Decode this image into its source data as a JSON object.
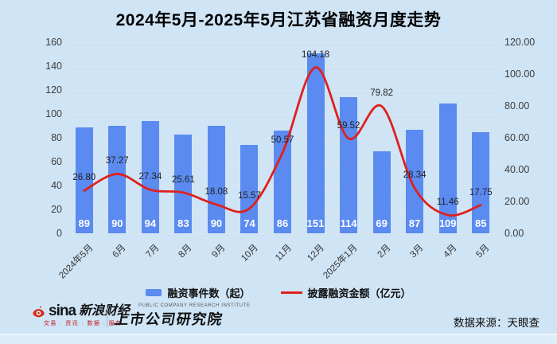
{
  "title": "2024年5月-2025年5月江苏省融资月度走势",
  "colors": {
    "background": "#cfe4f5",
    "bar": "#5b8bf0",
    "line": "#e0201c"
  },
  "chart_data": {
    "type": "bar",
    "subtype": "bar+line dual-axis",
    "categories": [
      "2024年5月",
      "6月",
      "7月",
      "8月",
      "9月",
      "10月",
      "11月",
      "12月",
      "2025年1月",
      "2月",
      "3月",
      "4月",
      "5月"
    ],
    "series": [
      {
        "name": "融资事件数（起）",
        "type": "bar",
        "axis": "left",
        "color": "#5b8bf0",
        "values": [
          89,
          90,
          94,
          83,
          90,
          74,
          86,
          151,
          114,
          69,
          87,
          109,
          85
        ]
      },
      {
        "name": "披露融资金额（亿元）",
        "type": "line",
        "axis": "right",
        "color": "#e0201c",
        "values": [
          26.8,
          37.27,
          27.34,
          25.61,
          18.08,
          15.57,
          50.57,
          104.18,
          59.52,
          79.82,
          28.34,
          11.46,
          17.75
        ]
      }
    ],
    "title": "2024年5月-2025年5月江苏省融资月度走势",
    "left_axis": {
      "min": 0,
      "max": 160,
      "step": 20,
      "ticks": [
        "0",
        "20",
        "40",
        "60",
        "80",
        "100",
        "120",
        "140",
        "160"
      ]
    },
    "right_axis": {
      "min": 0,
      "max": 120,
      "step": 20,
      "decimals": 2,
      "ticks": [
        "0.00",
        "20.00",
        "40.00",
        "60.00",
        "80.00",
        "100.00",
        "120.00"
      ]
    },
    "grid": "horizontal",
    "legend_position": "bottom"
  },
  "legend": {
    "bar_label": "融资事件数（起）",
    "line_label": "披露融资金额（亿元）"
  },
  "footer": {
    "sina": {
      "brand": "sina",
      "name": "新浪财经",
      "tagline": "交易 · 资讯 · 数据 · 服务"
    },
    "institute": {
      "en": "PUBLIC COMPANY RESEARCH INSTITUTE",
      "name": "上市公司研究院"
    },
    "source": "数据来源：天眼查"
  }
}
